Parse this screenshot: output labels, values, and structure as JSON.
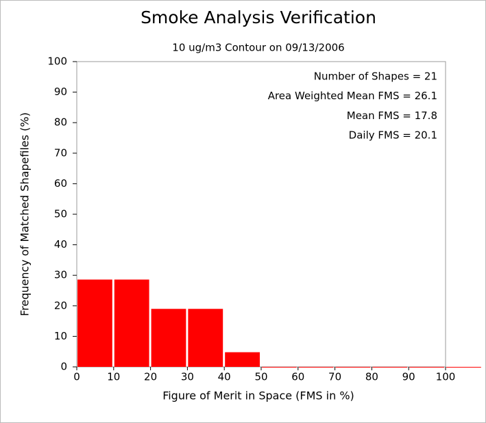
{
  "chart_data": {
    "type": "histogram",
    "title": "Smoke Analysis Verification",
    "subtitle": "10 ug/m3 Contour on 09/13/2006",
    "xlabel": "Figure of Merit in Space (FMS in %)",
    "ylabel": "Frequency of Matched Shapefiles (%)",
    "annotations": [
      "Number of Shapes = 21",
      "Area Weighted Mean FMS = 26.1",
      "Mean FMS = 17.8",
      "Daily FMS = 20.1"
    ],
    "bins": [
      0,
      10,
      20,
      30,
      40,
      50,
      60,
      70,
      80,
      90,
      100,
      110
    ],
    "values": [
      28.6,
      28.6,
      19.0,
      19.0,
      4.8,
      0,
      0,
      0,
      0,
      0,
      0
    ],
    "color": "#ff0000",
    "xlim": [
      0,
      100
    ],
    "ylim": [
      0,
      100
    ],
    "xticks": [
      0,
      10,
      20,
      30,
      40,
      50,
      60,
      70,
      80,
      90,
      100
    ],
    "yticks": [
      0,
      10,
      20,
      30,
      40,
      50,
      60,
      70,
      80,
      90,
      100
    ]
  }
}
